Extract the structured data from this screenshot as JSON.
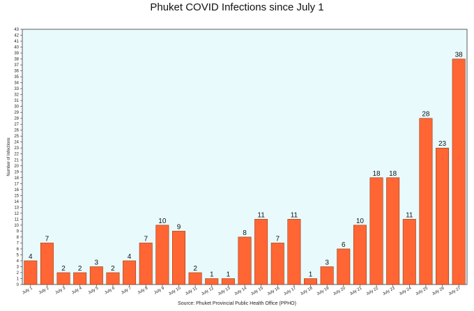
{
  "chart_data": {
    "type": "bar",
    "title": "Phuket COVID Infections since July 1",
    "ylabel": "Number of Infections",
    "xlabel": "",
    "source": "Source: Phuket Provincial Public Health Office (PPHO)",
    "categories": [
      "July 1",
      "July 2",
      "July 3",
      "July 4",
      "July 5",
      "July 6",
      "July 7",
      "July 8",
      "July 9",
      "July 10",
      "July 11",
      "July 12",
      "July 13",
      "July 14",
      "July 15",
      "July 16",
      "July 17",
      "July 18",
      "July 19",
      "July 20",
      "July 21",
      "July 22",
      "July 23",
      "July 24",
      "July 25",
      "July 26",
      "July 27"
    ],
    "values": [
      4,
      7,
      2,
      2,
      3,
      2,
      4,
      7,
      10,
      9,
      2,
      1,
      1,
      8,
      11,
      7,
      11,
      1,
      3,
      6,
      10,
      18,
      18,
      11,
      28,
      23,
      38
    ],
    "ylim": [
      0,
      43
    ],
    "yticks_step": 1,
    "grid": false,
    "legend": "none",
    "colors": {
      "bar": "#ff6633",
      "bar_stroke": "#8a2a0a",
      "plot_background": "#e8fafc",
      "axis": "#333333"
    }
  }
}
